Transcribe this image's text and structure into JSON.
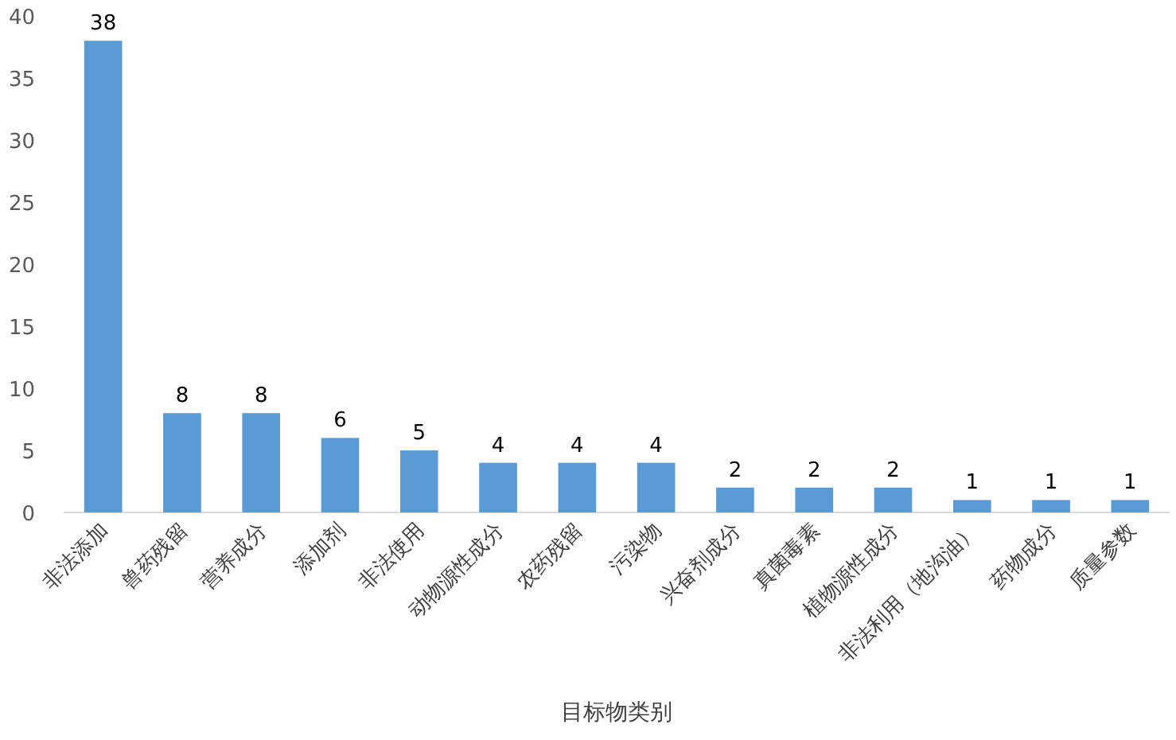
{
  "chart_data": {
    "type": "bar",
    "xlabel": "目标物类别",
    "categories": [
      "非法添加",
      "兽药残留",
      "营养成分",
      "添加剂",
      "非法使用",
      "动物源性成分",
      "农药残留",
      "污染物",
      "兴奋剂成分",
      "真菌毒素",
      "植物源性成分",
      "非法利用（地沟油）",
      "药物成分",
      "质量参数"
    ],
    "values": [
      38,
      8,
      8,
      6,
      5,
      4,
      4,
      4,
      2,
      2,
      2,
      1,
      1,
      1
    ],
    "color": "#5b9bd5",
    "ylim": [
      0,
      40
    ],
    "yticks": [
      0,
      5,
      10,
      15,
      20,
      25,
      30,
      35,
      40
    ],
    "data_labels": true
  }
}
